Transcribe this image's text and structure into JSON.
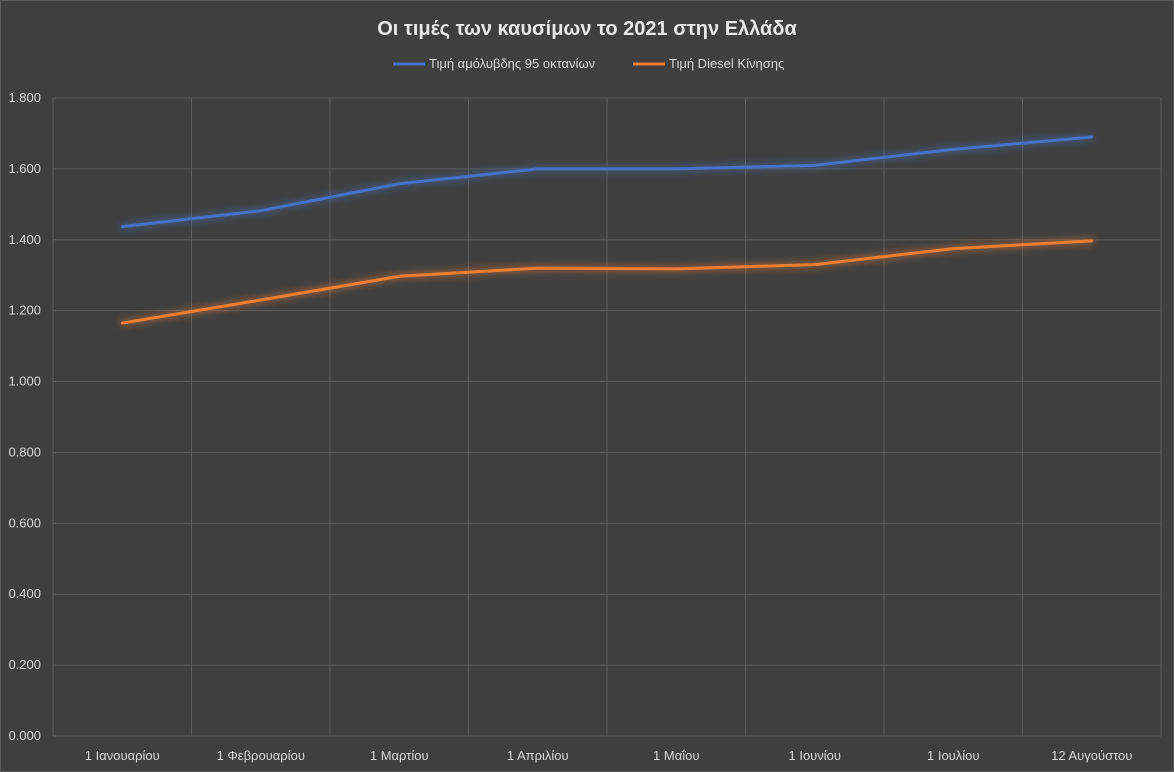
{
  "chart_data": {
    "type": "line",
    "title": "Οι τιμές των καυσίμων το 2021 στην Ελλάδα",
    "xlabel": "",
    "ylabel": "",
    "categories": [
      "1 Ιανουαρίου",
      "1 Φεβρουαρίου",
      "1 Μαρτίου",
      "1 Απριλίου",
      "1 Μαΐου",
      "1 Ιουνίου",
      "1 Ιουλίου",
      "12 Αυγούστου"
    ],
    "series": [
      {
        "name": "Τιμή αμόλυβδης 95 οκτανίων",
        "color": "#4472C4",
        "values": [
          1.437,
          1.482,
          1.558,
          1.6,
          1.6,
          1.61,
          1.655,
          1.69
        ]
      },
      {
        "name": "Τιμή Diesel Κίνησης",
        "color": "#ED7D31",
        "values": [
          1.165,
          1.23,
          1.297,
          1.32,
          1.318,
          1.33,
          1.375,
          1.397
        ]
      }
    ],
    "ylim": [
      0,
      1.8
    ],
    "yticks": [
      "0.000",
      "0.200",
      "0.400",
      "0.600",
      "0.800",
      "1.000",
      "1.200",
      "1.400",
      "1.600",
      "1.800"
    ],
    "grid": true,
    "legend_position": "top"
  }
}
